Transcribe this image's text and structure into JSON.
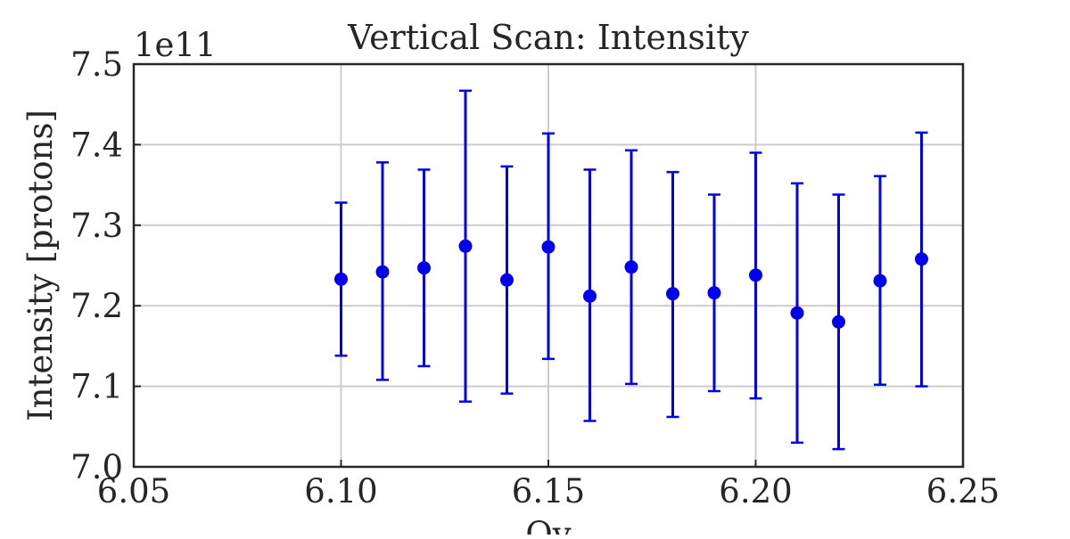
{
  "chart_data": {
    "type": "scatter",
    "title": "Vertical Scan: Intensity",
    "xlabel": "Qy",
    "ylabel": "Intensity [protons]",
    "y_offset_label": "1e11",
    "xlim": [
      6.05,
      6.25
    ],
    "ylim": [
      7.0,
      7.5
    ],
    "x_ticks": [
      "6.05",
      "6.10",
      "6.15",
      "6.20",
      "6.25"
    ],
    "y_ticks": [
      "7.0",
      "7.1",
      "7.2",
      "7.3",
      "7.4",
      "7.5"
    ],
    "grid": true,
    "marker_color": "#0000ee",
    "series": [
      {
        "x": [
          6.1,
          6.11,
          6.12,
          6.13,
          6.14,
          6.15,
          6.16,
          6.17,
          6.18,
          6.19,
          6.2,
          6.21,
          6.22,
          6.23,
          6.24
        ],
        "y": [
          7.233,
          7.242,
          7.247,
          7.274,
          7.232,
          7.273,
          7.212,
          7.248,
          7.215,
          7.216,
          7.238,
          7.191,
          7.18,
          7.231,
          7.258
        ],
        "yerr_low": [
          7.138,
          7.108,
          7.125,
          7.081,
          7.091,
          7.134,
          7.057,
          7.103,
          7.062,
          7.094,
          7.085,
          7.03,
          7.022,
          7.102,
          7.1
        ],
        "yerr_high": [
          7.328,
          7.378,
          7.369,
          7.467,
          7.373,
          7.414,
          7.369,
          7.393,
          7.366,
          7.338,
          7.39,
          7.352,
          7.338,
          7.361,
          7.415
        ]
      }
    ]
  }
}
